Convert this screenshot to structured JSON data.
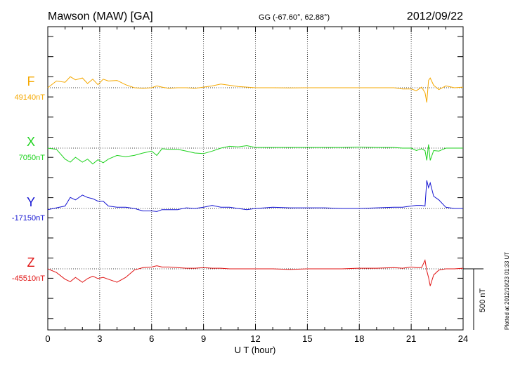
{
  "header": {
    "station": "Mawson (MAW)  [GA]",
    "coords": "GG (-67.60°,  62.88°)",
    "date": "2012/09/22"
  },
  "footer": {
    "plotted_note": "Plotted at 2012/10/23 01:33 UT"
  },
  "scale_bar": {
    "label": "500 nT",
    "value_nT": 500
  },
  "chart_data": {
    "type": "line",
    "xlabel": "U T (hour)",
    "xlim": [
      0,
      24
    ],
    "xticks": [
      "0",
      "3",
      "6",
      "9",
      "12",
      "15",
      "18",
      "21",
      "24"
    ],
    "grid": "dotted vertical at 3-hour intervals; dotted baseline per component",
    "colors": {
      "F": "#f5a800",
      "X": "#1ed21e",
      "Y": "#1414d2",
      "Z": "#e01414"
    },
    "series": [
      {
        "name": "F",
        "baseline_label": "49140nT",
        "baseline": 49140,
        "x": [
          0,
          0.5,
          1,
          1.3,
          1.6,
          2,
          2.3,
          2.6,
          2.9,
          3.2,
          3.5,
          4,
          4.5,
          5,
          5.5,
          6,
          6.3,
          6.6,
          7,
          7.5,
          8,
          8.5,
          9,
          9.5,
          10,
          10.5,
          11,
          11.5,
          12,
          13,
          14,
          15,
          16,
          17,
          18,
          19,
          20,
          20.5,
          21,
          21.3,
          21.6,
          21.8,
          21.9,
          22,
          22.1,
          22.3,
          22.6,
          23,
          23.5,
          24
        ],
        "values": [
          49140,
          49195,
          49185,
          49230,
          49205,
          49220,
          49175,
          49210,
          49165,
          49210,
          49195,
          49200,
          49165,
          49140,
          49135,
          49140,
          49155,
          49145,
          49135,
          49140,
          49140,
          49135,
          49145,
          49155,
          49170,
          49160,
          49150,
          49145,
          49140,
          49140,
          49138,
          49140,
          49140,
          49140,
          49140,
          49140,
          49140,
          49130,
          49130,
          49115,
          49145,
          49100,
          49020,
          49200,
          49220,
          49160,
          49125,
          49155,
          49140,
          49145
        ]
      },
      {
        "name": "X",
        "baseline_label": "7050nT",
        "baseline": 7050,
        "x": [
          0,
          0.5,
          1,
          1.3,
          1.6,
          2,
          2.3,
          2.6,
          2.9,
          3.2,
          3.5,
          4,
          4.5,
          5,
          5.5,
          6,
          6.3,
          6.6,
          7,
          7.5,
          8,
          8.5,
          9,
          9.5,
          10,
          10.5,
          11,
          11.5,
          12,
          13,
          14,
          15,
          16,
          17,
          18,
          19,
          20,
          20.5,
          21,
          21.3,
          21.6,
          21.8,
          21.9,
          22,
          22.1,
          22.3,
          22.6,
          23,
          23.5,
          24
        ],
        "values": [
          7050,
          7040,
          6960,
          6935,
          6975,
          6935,
          6960,
          6920,
          6955,
          6930,
          6960,
          6990,
          6980,
          6990,
          7010,
          7025,
          6990,
          7045,
          7040,
          7040,
          7025,
          7010,
          7005,
          7025,
          7050,
          7065,
          7060,
          7070,
          7055,
          7055,
          7055,
          7055,
          7055,
          7055,
          7058,
          7055,
          7055,
          7050,
          7050,
          7030,
          7045,
          7030,
          6950,
          7080,
          6950,
          7030,
          7025,
          7050,
          7050,
          7050
        ]
      },
      {
        "name": "Y",
        "baseline_label": "-17150nT",
        "baseline": -17150,
        "x": [
          0,
          0.5,
          1,
          1.3,
          1.6,
          2,
          2.3,
          2.6,
          2.9,
          3.2,
          3.5,
          4,
          4.5,
          5,
          5.5,
          6,
          6.3,
          6.6,
          7,
          7.5,
          8,
          8.5,
          9,
          9.5,
          10,
          10.5,
          11,
          11.5,
          12,
          13,
          14,
          15,
          16,
          17,
          18,
          19,
          20,
          20.5,
          21,
          21.3,
          21.6,
          21.8,
          21.9,
          22,
          22.1,
          22.3,
          22.6,
          23,
          23.5,
          24
        ],
        "values": [
          -17160,
          -17145,
          -17130,
          -17060,
          -17080,
          -17040,
          -17060,
          -17070,
          -17090,
          -17090,
          -17130,
          -17140,
          -17140,
          -17150,
          -17170,
          -17170,
          -17175,
          -17160,
          -17160,
          -17160,
          -17145,
          -17150,
          -17140,
          -17125,
          -17140,
          -17140,
          -17150,
          -17160,
          -17150,
          -17140,
          -17145,
          -17145,
          -17145,
          -17150,
          -17150,
          -17145,
          -17140,
          -17140,
          -17130,
          -17125,
          -17125,
          -17130,
          -16920,
          -16980,
          -16940,
          -17050,
          -17080,
          -17140,
          -17150,
          -17150
        ]
      },
      {
        "name": "Z",
        "baseline_label": "-45510nT",
        "baseline": -45510,
        "x": [
          0,
          0.5,
          1,
          1.3,
          1.6,
          2,
          2.3,
          2.6,
          2.9,
          3.2,
          3.5,
          4,
          4.5,
          5,
          5.5,
          6,
          6.3,
          6.6,
          7,
          7.5,
          8,
          8.5,
          9,
          9.5,
          10,
          10.5,
          11,
          11.5,
          12,
          13,
          14,
          15,
          16,
          17,
          18,
          19,
          20,
          20.5,
          21,
          21.3,
          21.6,
          21.8,
          21.9,
          22,
          22.1,
          22.3,
          22.6,
          23,
          23.5,
          24
        ],
        "values": [
          -45510,
          -45540,
          -45595,
          -45615,
          -45580,
          -45620,
          -45590,
          -45570,
          -45590,
          -45580,
          -45595,
          -45620,
          -45580,
          -45520,
          -45500,
          -45495,
          -45485,
          -45495,
          -45495,
          -45500,
          -45505,
          -45505,
          -45500,
          -45505,
          -45505,
          -45510,
          -45510,
          -45510,
          -45510,
          -45510,
          -45515,
          -45510,
          -45510,
          -45510,
          -45505,
          -45505,
          -45500,
          -45505,
          -45495,
          -45500,
          -45500,
          -45440,
          -45525,
          -45580,
          -45650,
          -45560,
          -45520,
          -45510,
          -45510,
          -45505
        ]
      }
    ]
  }
}
